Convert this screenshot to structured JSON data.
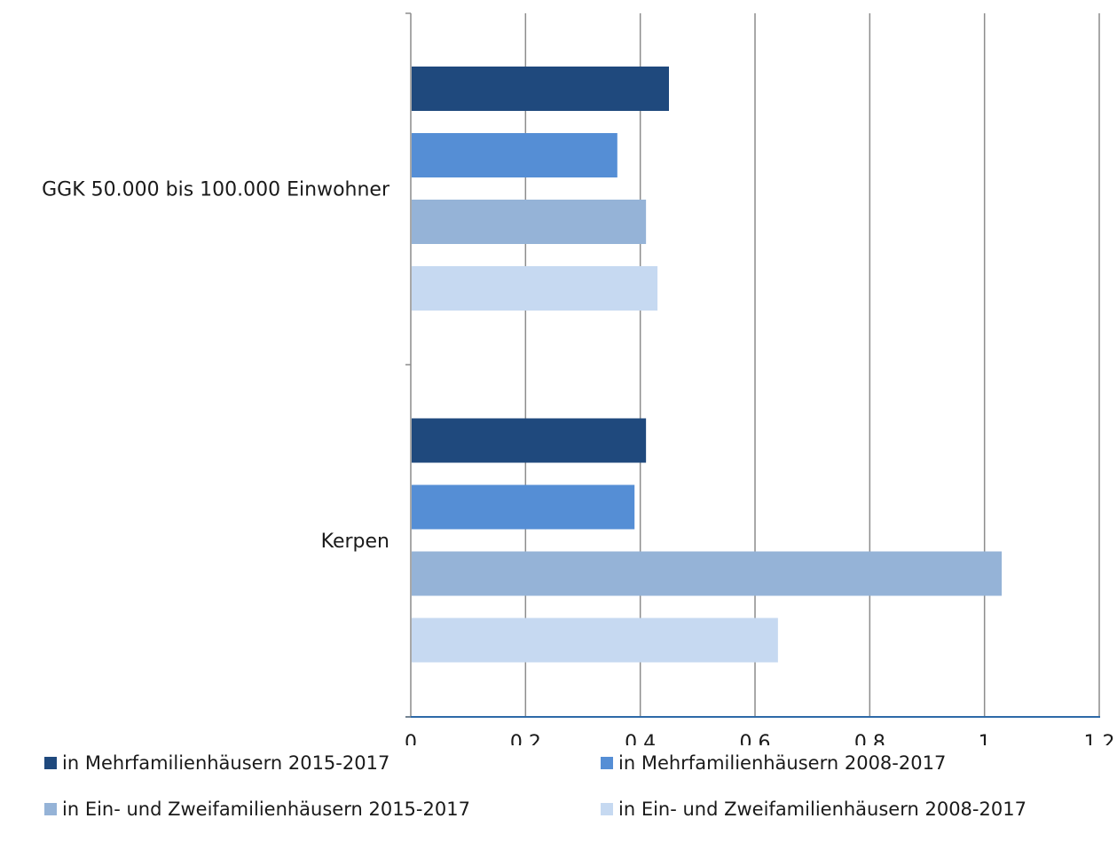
{
  "chart_data": {
    "type": "bar",
    "orientation": "horizontal",
    "categories": [
      "GGK 50.000 bis 100.000 Einwohner",
      "Kerpen"
    ],
    "series": [
      {
        "name": "in Mehrfamilienhäusern 2015-2017",
        "color": "#1f497d",
        "values": [
          0.45,
          0.41
        ]
      },
      {
        "name": "in Mehrfamilienhäusern 2008-2017",
        "color": "#558ed5",
        "values": [
          0.36,
          0.39
        ]
      },
      {
        "name": "in Ein- und Zweifamilienhäusern 2015-2017",
        "color": "#95b3d7",
        "values": [
          0.41,
          1.03
        ]
      },
      {
        "name": "in Ein- und Zweifamilienhäusern 2008-2017",
        "color": "#c6d9f1",
        "values": [
          0.43,
          0.64
        ]
      }
    ],
    "xlim": [
      0,
      1.2
    ],
    "xticks": [
      "0",
      "0,2",
      "0,4",
      "0,6",
      "0,8",
      "1",
      "1,2"
    ],
    "grid": true,
    "legend_position": "bottom",
    "title": "",
    "xlabel": "",
    "ylabel": ""
  }
}
